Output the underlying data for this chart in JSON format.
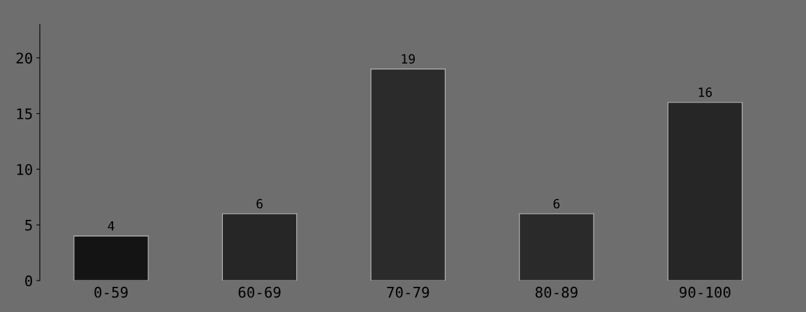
{
  "chart_data": {
    "type": "bar",
    "categories": [
      "0-59",
      "60-69",
      "70-79",
      "80-89",
      "90-100"
    ],
    "values": [
      4,
      6,
      19,
      6,
      16
    ],
    "colors": [
      "#141414",
      "#262626",
      "#2b2b2b",
      "#2a2a2a",
      "#262626"
    ],
    "ylim": [
      0,
      23
    ],
    "yticks": [
      0,
      5,
      10,
      15,
      20
    ],
    "data_labels": true,
    "grid": false,
    "legend": false
  }
}
